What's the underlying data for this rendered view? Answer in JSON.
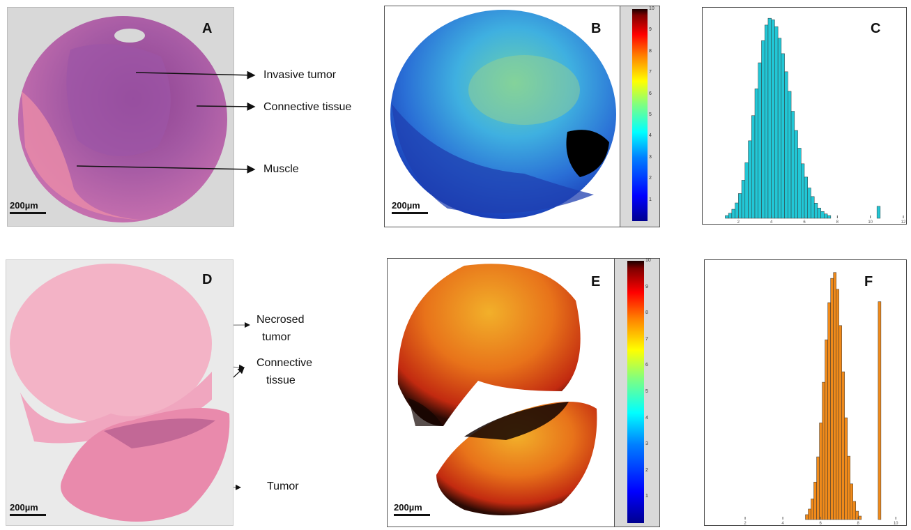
{
  "panels": {
    "A": {
      "letter": "A",
      "scalebar": "200µm",
      "annotations": [
        "Invasive tumor",
        "Connective tissue",
        "Muscle"
      ]
    },
    "B": {
      "letter": "B",
      "scalebar": "200µm",
      "colorbar_ticks": [
        "1",
        "2",
        "3",
        "4",
        "5",
        "6",
        "7",
        "8",
        "9",
        "10"
      ]
    },
    "C": {
      "letter": "C"
    },
    "D": {
      "letter": "D",
      "scalebar": "200µm",
      "annotations": [
        "Necrosed",
        "tumor",
        "Connective",
        "tissue",
        "Tumor"
      ]
    },
    "E": {
      "letter": "E",
      "scalebar": "200µm",
      "colorbar_ticks": [
        "1",
        "2",
        "3",
        "4",
        "5",
        "6",
        "7",
        "8",
        "9",
        "10"
      ]
    },
    "F": {
      "letter": "F"
    }
  },
  "colors": {
    "he_stain_purple": "#9a4f9a",
    "he_stain_pink": "#f0a6bf",
    "histogram_C": "#22c7d6",
    "histogram_F": "#f08a1a"
  },
  "histograms": {
    "C": {
      "x_ticks": [
        "2",
        "4",
        "6",
        "8",
        "10",
        "12"
      ],
      "xlim": [
        0,
        12
      ]
    },
    "F": {
      "x_ticks": [
        "2",
        "4",
        "6",
        "8",
        "10"
      ],
      "xlim": [
        0,
        10
      ]
    }
  }
}
